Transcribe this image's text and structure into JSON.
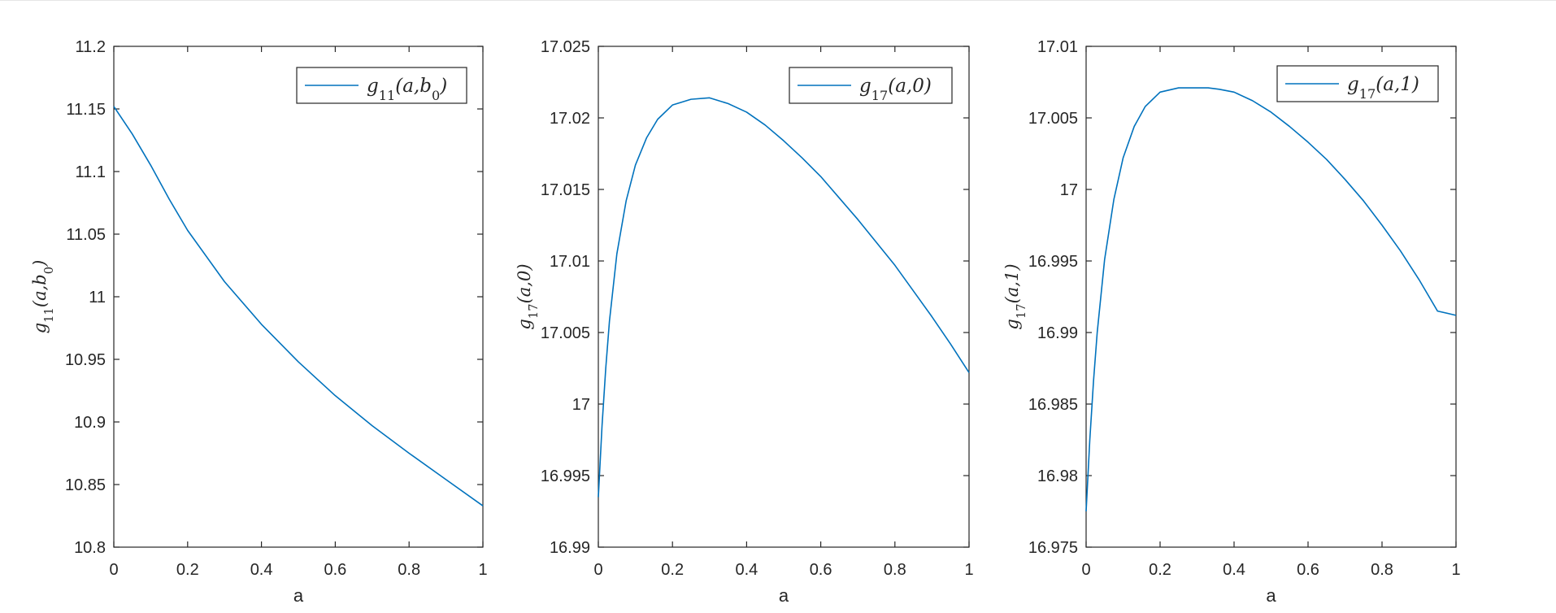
{
  "figure": {
    "background": "#ffffff",
    "axis_color": "#262626",
    "line_color": "#0072bd"
  },
  "chart_data": [
    {
      "type": "line",
      "xlabel": "a",
      "ylabel": "g11(a,b0)",
      "legend": "top-right",
      "grid": false,
      "xlim": [
        0,
        1
      ],
      "ylim": [
        10.8,
        11.2
      ],
      "xticks": [
        0,
        0.2,
        0.4,
        0.6,
        0.8,
        1
      ],
      "xtick_labels": [
        "0",
        "0.2",
        "0.4",
        "0.6",
        "0.8",
        "1"
      ],
      "yticks": [
        10.8,
        10.85,
        10.9,
        10.95,
        11,
        11.05,
        11.1,
        11.15,
        11.2
      ],
      "ytick_labels": [
        "10.8",
        "10.85",
        "10.9",
        "10.95",
        "11",
        "11.05",
        "11.1",
        "11.15",
        "11.2"
      ],
      "series": [
        {
          "name": "g11(a,b0)",
          "x": [
            0,
            0.05,
            0.1,
            0.15,
            0.2,
            0.3,
            0.4,
            0.5,
            0.6,
            0.7,
            0.8,
            0.9,
            1
          ],
          "y": [
            11.152,
            11.13,
            11.105,
            11.078,
            11.053,
            11.012,
            10.978,
            10.948,
            10.921,
            10.897,
            10.875,
            10.854,
            10.833
          ]
        }
      ]
    },
    {
      "type": "line",
      "xlabel": "a",
      "ylabel": "g17(a,0)",
      "legend": "top-right",
      "grid": false,
      "xlim": [
        0,
        1
      ],
      "ylim": [
        16.99,
        17.025
      ],
      "xticks": [
        0,
        0.2,
        0.4,
        0.6,
        0.8,
        1
      ],
      "xtick_labels": [
        "0",
        "0.2",
        "0.4",
        "0.6",
        "0.8",
        "1"
      ],
      "yticks": [
        16.99,
        16.995,
        17,
        17.005,
        17.01,
        17.015,
        17.02,
        17.025
      ],
      "ytick_labels": [
        "16.99",
        "16.995",
        "17",
        "17.005",
        "17.01",
        "17.015",
        "17.02",
        "17.025"
      ],
      "series": [
        {
          "name": "g17(a,0)",
          "x": [
            0,
            0.01,
            0.02,
            0.03,
            0.05,
            0.075,
            0.1,
            0.13,
            0.16,
            0.2,
            0.25,
            0.3,
            0.35,
            0.4,
            0.45,
            0.5,
            0.55,
            0.6,
            0.65,
            0.7,
            0.75,
            0.8,
            0.85,
            0.9,
            0.95,
            1
          ],
          "y": [
            16.9935,
            16.9985,
            17.0025,
            17.0058,
            17.0105,
            17.0142,
            17.0167,
            17.0186,
            17.0199,
            17.0209,
            17.0213,
            17.0214,
            17.021,
            17.0204,
            17.0195,
            17.0184,
            17.0172,
            17.0159,
            17.0144,
            17.0129,
            17.0113,
            17.0097,
            17.0079,
            17.0061,
            17.0042,
            17.0022
          ]
        }
      ]
    },
    {
      "type": "line",
      "xlabel": "a",
      "ylabel": "g17(a,1)",
      "legend": "top-right",
      "grid": false,
      "xlim": [
        0,
        1
      ],
      "ylim": [
        16.975,
        17.01
      ],
      "xticks": [
        0,
        0.2,
        0.4,
        0.6,
        0.8,
        1
      ],
      "xtick_labels": [
        "0",
        "0.2",
        "0.4",
        "0.6",
        "0.8",
        "1"
      ],
      "yticks": [
        16.975,
        16.98,
        16.985,
        16.99,
        16.995,
        17,
        17.005,
        17.01
      ],
      "ytick_labels": [
        "16.975",
        "16.98",
        "16.985",
        "16.99",
        "16.995",
        "17",
        "17.005",
        "17.01"
      ],
      "series": [
        {
          "name": "g17(a,1)",
          "x": [
            0,
            0.01,
            0.02,
            0.03,
            0.05,
            0.075,
            0.1,
            0.13,
            0.16,
            0.2,
            0.25,
            0.3,
            0.33,
            0.36,
            0.4,
            0.45,
            0.5,
            0.55,
            0.6,
            0.65,
            0.7,
            0.75,
            0.8,
            0.85,
            0.9,
            0.95,
            1
          ],
          "y": [
            16.9775,
            16.9825,
            16.9866,
            16.99,
            16.9951,
            16.9993,
            17.0022,
            17.0044,
            17.0058,
            17.0068,
            17.0071,
            17.0071,
            17.0071,
            17.007,
            17.0068,
            17.0062,
            17.0054,
            17.0044,
            17.0033,
            17.0021,
            17.0007,
            16.9992,
            16.9975,
            16.9957,
            16.9937,
            16.9915,
            16.9912
          ]
        }
      ]
    }
  ]
}
